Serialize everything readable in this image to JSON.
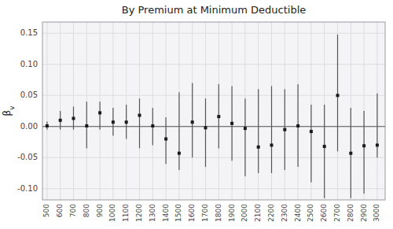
{
  "chart_data": {
    "type": "scatter",
    "title": "By Premium at Minimum Deductible",
    "ylabel": "βv",
    "x": [
      500,
      600,
      700,
      800,
      900,
      1000,
      1100,
      1200,
      1300,
      1400,
      1500,
      1600,
      1700,
      1800,
      1900,
      2000,
      2100,
      2200,
      2300,
      2400,
      2500,
      2600,
      2700,
      2800,
      2900,
      3000
    ],
    "values": [
      0.001,
      0.01,
      0.013,
      0.001,
      0.022,
      0.007,
      0.007,
      0.018,
      0.001,
      -0.02,
      -0.043,
      0.007,
      -0.002,
      0.016,
      0.005,
      -0.003,
      -0.033,
      -0.03,
      -0.005,
      0.001,
      -0.008,
      -0.032,
      0.05,
      -0.043,
      -0.031,
      -0.03
    ],
    "y_lo": [
      -0.005,
      -0.005,
      -0.005,
      -0.035,
      -0.005,
      -0.015,
      -0.02,
      -0.035,
      -0.03,
      -0.06,
      -0.07,
      -0.05,
      -0.065,
      -0.035,
      -0.055,
      -0.08,
      -0.075,
      -0.075,
      -0.07,
      -0.065,
      -0.09,
      -0.115,
      -0.04,
      -0.115,
      -0.108,
      -0.05
    ],
    "y_hi": [
      0.008,
      0.025,
      0.032,
      0.04,
      0.04,
      0.03,
      0.035,
      0.045,
      0.03,
      0.015,
      0.055,
      0.07,
      0.045,
      0.068,
      0.065,
      0.045,
      0.06,
      0.065,
      0.06,
      0.068,
      0.035,
      0.035,
      0.148,
      0.03,
      0.025,
      0.053
    ],
    "color": "#1a1a1a",
    "xlim": [
      465,
      3060
    ],
    "ylim": [
      -0.118,
      0.168
    ],
    "xticks": [
      500,
      600,
      700,
      800,
      900,
      1000,
      1100,
      1200,
      1300,
      1400,
      1500,
      1600,
      1700,
      1800,
      1900,
      2000,
      2100,
      2200,
      2300,
      2400,
      2500,
      2600,
      2700,
      2800,
      2900,
      3000
    ],
    "yticks": [
      {
        "value": -0.1,
        "label": "-0.10"
      },
      -0.05,
      {
        "value": 0,
        "label": "0.00"
      },
      0.05,
      {
        "value": 0.1,
        "label": "0.10"
      },
      0.15
    ],
    "grid": true,
    "hline": 0
  }
}
